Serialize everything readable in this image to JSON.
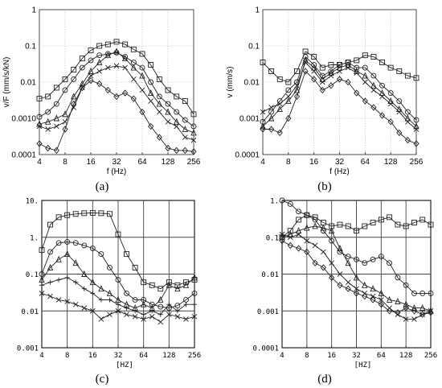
{
  "chart_data": [
    {
      "type": "line",
      "id": "a",
      "panel_label": "(a)",
      "xlabel": "f (Hz)",
      "ylabel": "v/F (mm/s/kN)",
      "x_scale": "log2",
      "y_scale": "log",
      "xlim": [
        4,
        256
      ],
      "ylim": [
        0.0001,
        1
      ],
      "x_ticks": [
        "4",
        "8",
        "16",
        "32",
        "64",
        "128",
        "256"
      ],
      "y_ticks": [
        "0.0001",
        "0.0010",
        "0.01",
        "0.1",
        "1"
      ],
      "grid": true,
      "x": [
        4,
        5.04,
        6.35,
        8,
        10.08,
        12.7,
        16,
        20.16,
        25.4,
        32,
        40.3,
        50.8,
        64,
        80.6,
        101.6,
        128,
        161.3,
        203.2,
        256
      ],
      "series": [
        {
          "marker": "square",
          "values": [
            0.0035,
            0.004,
            0.007,
            0.012,
            0.022,
            0.045,
            0.075,
            0.1,
            0.11,
            0.13,
            0.11,
            0.08,
            0.06,
            0.03,
            0.012,
            0.006,
            0.004,
            0.003,
            0.0013
          ]
        },
        {
          "marker": "circle",
          "values": [
            0.0011,
            0.0015,
            0.0025,
            0.006,
            0.012,
            0.025,
            0.04,
            0.055,
            0.06,
            0.065,
            0.05,
            0.035,
            0.025,
            0.01,
            0.004,
            0.0025,
            0.0015,
            0.0009,
            0.0006
          ]
        },
        {
          "marker": "triangle",
          "values": [
            0.0007,
            0.0008,
            0.001,
            0.0013,
            0.004,
            0.009,
            0.02,
            0.035,
            0.055,
            0.07,
            0.045,
            0.025,
            0.015,
            0.005,
            0.0025,
            0.0015,
            0.0008,
            0.0005,
            0.0004
          ]
        },
        {
          "marker": "x",
          "values": [
            0.0006,
            0.0005,
            0.0006,
            0.0008,
            0.002,
            0.007,
            0.015,
            0.02,
            0.025,
            0.028,
            0.025,
            0.012,
            0.006,
            0.003,
            0.0015,
            0.0008,
            0.0006,
            0.0003,
            0.00025
          ]
        },
        {
          "marker": "diamond",
          "values": [
            0.0002,
            0.00015,
            0.00013,
            0.0005,
            0.0025,
            0.007,
            0.011,
            0.009,
            0.006,
            0.004,
            0.005,
            0.0035,
            0.0015,
            0.0006,
            0.0003,
            0.00015,
            0.00013,
            0.00013,
            0.00012
          ]
        }
      ]
    },
    {
      "type": "line",
      "id": "b",
      "panel_label": "(b)",
      "xlabel": "f (Hz)",
      "ylabel": "v (mm/s)",
      "x_scale": "log2",
      "y_scale": "log",
      "xlim": [
        4,
        256
      ],
      "ylim": [
        0.0001,
        1
      ],
      "x_ticks": [
        "4",
        "8",
        "16",
        "32",
        "64",
        "128",
        "256"
      ],
      "y_ticks": [
        "0.0001",
        "0.001",
        "0.01",
        "0.1",
        "1"
      ],
      "grid": true,
      "x": [
        4,
        5.04,
        6.35,
        8,
        10.08,
        12.7,
        16,
        20.16,
        25.4,
        32,
        40.3,
        50.8,
        64,
        80.6,
        101.6,
        128,
        161.3,
        203.2,
        256
      ],
      "series": [
        {
          "marker": "square",
          "values": [
            0.035,
            0.02,
            0.012,
            0.01,
            0.02,
            0.07,
            0.05,
            0.025,
            0.03,
            0.03,
            0.035,
            0.04,
            0.055,
            0.05,
            0.035,
            0.025,
            0.02,
            0.015,
            0.013
          ]
        },
        {
          "marker": "circle",
          "values": [
            0.0008,
            0.0015,
            0.003,
            0.006,
            0.01,
            0.05,
            0.03,
            0.015,
            0.02,
            0.03,
            0.035,
            0.025,
            0.025,
            0.015,
            0.008,
            0.005,
            0.003,
            0.0015,
            0.0009
          ]
        },
        {
          "marker": "triangle",
          "values": [
            0.0006,
            0.001,
            0.0018,
            0.003,
            0.006,
            0.04,
            0.025,
            0.012,
            0.018,
            0.025,
            0.03,
            0.02,
            0.015,
            0.008,
            0.005,
            0.003,
            0.0018,
            0.001,
            0.0006
          ]
        },
        {
          "marker": "x",
          "values": [
            0.0015,
            0.002,
            0.0025,
            0.004,
            0.008,
            0.035,
            0.02,
            0.01,
            0.015,
            0.02,
            0.025,
            0.018,
            0.01,
            0.006,
            0.004,
            0.0025,
            0.0015,
            0.0008,
            0.0005
          ]
        },
        {
          "marker": "diamond",
          "values": [
            0.0005,
            0.0005,
            0.0004,
            0.001,
            0.004,
            0.02,
            0.012,
            0.006,
            0.008,
            0.012,
            0.01,
            0.005,
            0.003,
            0.002,
            0.0012,
            0.0008,
            0.0004,
            0.00025,
            0.0002
          ]
        }
      ]
    },
    {
      "type": "line",
      "id": "c",
      "panel_label": "(c)",
      "xlabel": "[HZ]",
      "x_scale": "log2",
      "y_scale": "log",
      "xlim": [
        4,
        256
      ],
      "ylim": [
        0.001,
        10
      ],
      "x_ticks": [
        "4",
        "8",
        "16",
        "32",
        "64",
        "128",
        "256"
      ],
      "y_ticks": [
        "0.001",
        "0.01",
        "0.1",
        "1.",
        "10."
      ],
      "grid": true,
      "x": [
        4,
        5.04,
        6.35,
        8,
        10.08,
        12.7,
        16,
        20.16,
        25.4,
        32,
        40.3,
        50.8,
        64,
        80.6,
        101.6,
        128,
        161.3,
        203.2,
        256
      ],
      "series": [
        {
          "marker": "square",
          "values": [
            0.45,
            2.2,
            3.5,
            4.0,
            4.3,
            4.5,
            4.6,
            4.5,
            4.3,
            1.2,
            0.35,
            0.15,
            0.06,
            0.05,
            0.04,
            0.06,
            0.05,
            0.06,
            0.07
          ]
        },
        {
          "marker": "circle",
          "values": [
            0.1,
            0.4,
            0.7,
            0.75,
            0.7,
            0.6,
            0.5,
            0.35,
            0.15,
            0.07,
            0.03,
            0.02,
            0.02,
            0.015,
            0.013,
            0.012,
            0.014,
            0.02,
            0.03
          ]
        },
        {
          "marker": "triangle",
          "values": [
            0.07,
            0.15,
            0.25,
            0.35,
            0.2,
            0.1,
            0.06,
            0.04,
            0.03,
            0.02,
            0.015,
            0.012,
            0.015,
            0.012,
            0.02,
            0.05,
            0.04,
            0.05,
            0.08
          ]
        },
        {
          "marker": "plus",
          "values": [
            0.05,
            0.06,
            0.07,
            0.08,
            0.06,
            0.04,
            0.03,
            0.02,
            0.02,
            0.015,
            0.012,
            0.01,
            0.008,
            0.01,
            0.008,
            0.015,
            0.01,
            0.015,
            0.015
          ]
        },
        {
          "marker": "x",
          "values": [
            0.03,
            0.025,
            0.02,
            0.018,
            0.015,
            0.012,
            0.01,
            0.006,
            0.008,
            0.01,
            0.008,
            0.007,
            0.006,
            0.007,
            0.005,
            0.008,
            0.007,
            0.006,
            0.007
          ]
        }
      ]
    },
    {
      "type": "line",
      "id": "d",
      "panel_label": "(d)",
      "xlabel": "[HZ]",
      "x_scale": "log2",
      "y_scale": "log",
      "xlim": [
        4,
        256
      ],
      "ylim": [
        0.0001,
        1
      ],
      "x_ticks": [
        "4",
        "8",
        "16",
        "32",
        "64",
        "128",
        "256"
      ],
      "y_ticks": [
        "0.0001",
        "0.001",
        "0.01",
        "0.1",
        "1."
      ],
      "grid": true,
      "x": [
        4,
        5.04,
        6.35,
        8,
        10.08,
        12.7,
        16,
        20.16,
        25.4,
        32,
        40.3,
        50.8,
        64,
        80.6,
        101.6,
        128,
        161.3,
        203.2,
        256
      ],
      "series": [
        {
          "marker": "square",
          "values": [
            0.1,
            0.15,
            0.3,
            0.4,
            0.35,
            0.25,
            0.2,
            0.22,
            0.2,
            0.15,
            0.2,
            0.25,
            0.3,
            0.35,
            0.22,
            0.2,
            0.25,
            0.3,
            0.22
          ]
        },
        {
          "marker": "circle",
          "values": [
            1.0,
            0.8,
            0.5,
            0.4,
            0.3,
            0.15,
            0.08,
            0.04,
            0.03,
            0.025,
            0.02,
            0.025,
            0.03,
            0.02,
            0.008,
            0.005,
            0.003,
            0.003,
            0.003
          ]
        },
        {
          "marker": "triangle",
          "values": [
            0.1,
            0.12,
            0.15,
            0.18,
            0.2,
            0.18,
            0.15,
            0.05,
            0.02,
            0.008,
            0.005,
            0.004,
            0.003,
            0.002,
            0.0018,
            0.0015,
            0.0012,
            0.0012,
            0.001
          ]
        },
        {
          "marker": "x",
          "values": [
            0.12,
            0.1,
            0.12,
            0.08,
            0.06,
            0.04,
            0.02,
            0.01,
            0.006,
            0.004,
            0.003,
            0.0025,
            0.002,
            0.0012,
            0.0008,
            0.0006,
            0.0006,
            0.0008,
            0.001
          ]
        },
        {
          "marker": "diamond",
          "values": [
            0.08,
            0.06,
            0.05,
            0.04,
            0.02,
            0.015,
            0.008,
            0.005,
            0.004,
            0.003,
            0.0025,
            0.002,
            0.0015,
            0.001,
            0.0009,
            0.0012,
            0.001,
            0.0008,
            0.0009
          ]
        }
      ]
    }
  ]
}
